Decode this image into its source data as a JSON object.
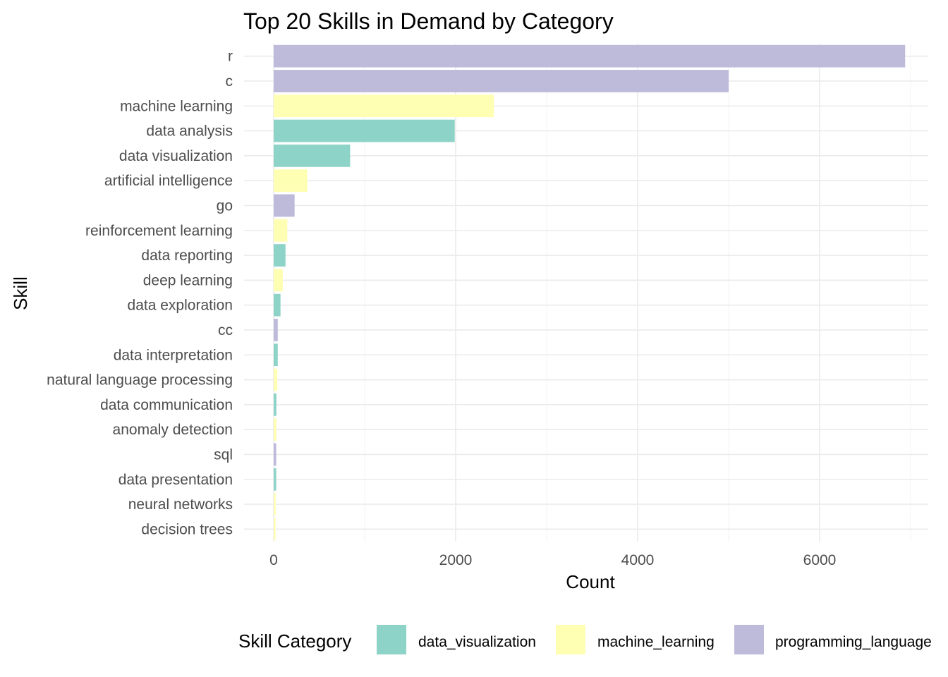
{
  "chart_data": {
    "type": "bar",
    "orientation": "horizontal",
    "title": "Top 20 Skills in Demand by Category",
    "xlabel": "Count",
    "ylabel": "Skill",
    "xlim": [
      0,
      7000
    ],
    "x_ticks": [
      0,
      2000,
      4000,
      6000
    ],
    "x_tick_labels": [
      "0",
      "2000",
      "4000",
      "6000"
    ],
    "grid": true,
    "legend_position": "bottom",
    "legend_title": "Skill Category",
    "legend": [
      {
        "name": "data_visualization",
        "color": "#8DD3C7"
      },
      {
        "name": "machine_learning",
        "color": "#FFFFB3"
      },
      {
        "name": "programming_language",
        "color": "#BEBADA"
      }
    ],
    "bars": [
      {
        "skill": "r",
        "value": 6940,
        "category": "programming_language"
      },
      {
        "skill": "c",
        "value": 5000,
        "category": "programming_language"
      },
      {
        "skill": "machine learning",
        "value": 2420,
        "category": "machine_learning"
      },
      {
        "skill": "data analysis",
        "value": 1990,
        "category": "data_visualization"
      },
      {
        "skill": "data visualization",
        "value": 840,
        "category": "data_visualization"
      },
      {
        "skill": "artificial intelligence",
        "value": 370,
        "category": "machine_learning"
      },
      {
        "skill": "go",
        "value": 230,
        "category": "programming_language"
      },
      {
        "skill": "reinforcement learning",
        "value": 150,
        "category": "machine_learning"
      },
      {
        "skill": "data reporting",
        "value": 130,
        "category": "data_visualization"
      },
      {
        "skill": "deep learning",
        "value": 100,
        "category": "machine_learning"
      },
      {
        "skill": "data exploration",
        "value": 75,
        "category": "data_visualization"
      },
      {
        "skill": "cc",
        "value": 45,
        "category": "programming_language"
      },
      {
        "skill": "data interpretation",
        "value": 45,
        "category": "data_visualization"
      },
      {
        "skill": "natural language processing",
        "value": 40,
        "category": "machine_learning"
      },
      {
        "skill": "data communication",
        "value": 30,
        "category": "data_visualization"
      },
      {
        "skill": "anomaly detection",
        "value": 30,
        "category": "machine_learning"
      },
      {
        "skill": "sql",
        "value": 28,
        "category": "programming_language"
      },
      {
        "skill": "data presentation",
        "value": 28,
        "category": "data_visualization"
      },
      {
        "skill": "neural networks",
        "value": 22,
        "category": "machine_learning"
      },
      {
        "skill": "decision trees",
        "value": 20,
        "category": "machine_learning"
      }
    ]
  }
}
